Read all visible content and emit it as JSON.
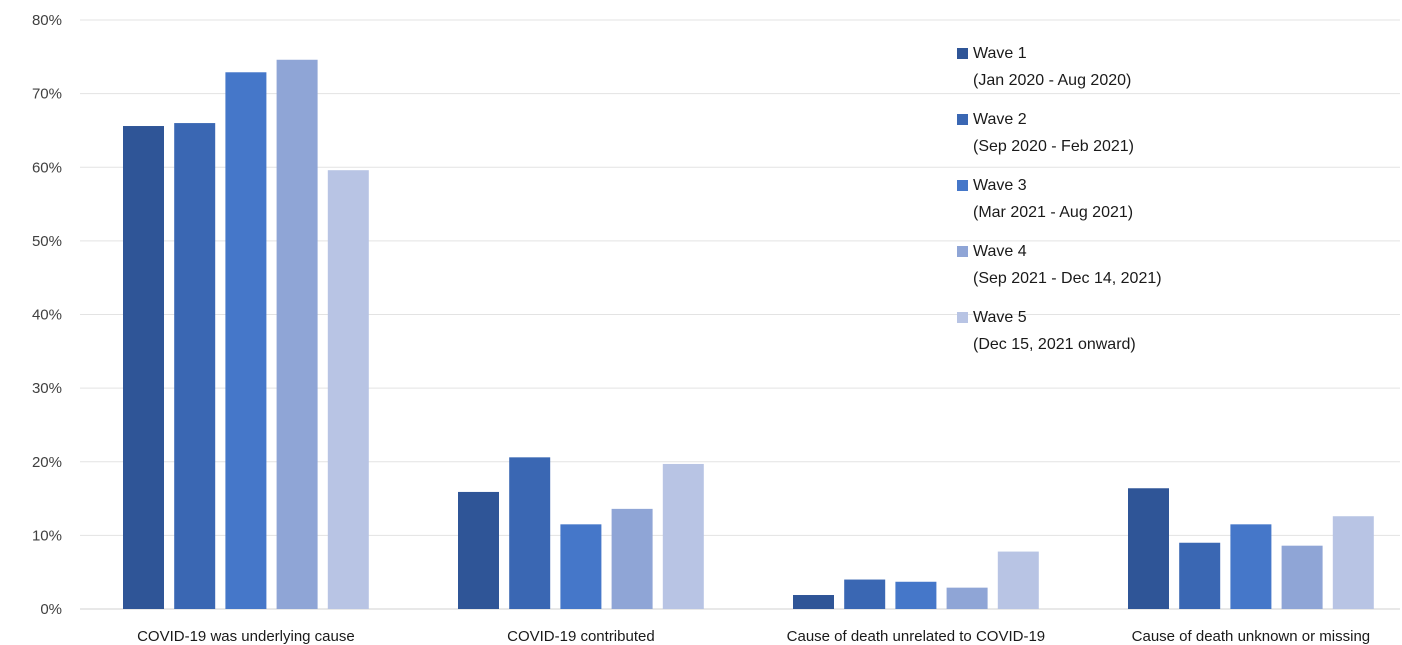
{
  "chart_data": {
    "type": "bar",
    "title": "",
    "xlabel": "",
    "ylabel": "",
    "categories": [
      "COVID-19 was underlying cause",
      "COVID-19 contributed",
      "Cause of death unrelated to COVID-19",
      "Cause of death unknown or missing"
    ],
    "series": [
      {
        "name": "Wave 1",
        "period": "(Jan 2020 - Aug 2020)",
        "color": "#2f5597",
        "values": [
          65.6,
          15.9,
          1.9,
          16.4
        ]
      },
      {
        "name": "Wave 2",
        "period": "(Sep 2020 - Feb 2021)",
        "color": "#3a67b3",
        "values": [
          66.0,
          20.6,
          4.0,
          9.0
        ]
      },
      {
        "name": "Wave 3",
        "period": "(Mar 2021 - Aug 2021)",
        "color": "#4577c9",
        "values": [
          72.9,
          11.5,
          3.7,
          11.5
        ]
      },
      {
        "name": "Wave 4",
        "period": "(Sep 2021 - Dec 14, 2021)",
        "color": "#8fa5d6",
        "values": [
          74.6,
          13.6,
          2.9,
          8.6
        ]
      },
      {
        "name": "Wave 5",
        "period": "(Dec 15, 2021 onward)",
        "color": "#b8c4e4",
        "values": [
          59.6,
          19.7,
          7.8,
          12.6
        ]
      }
    ],
    "ylim": [
      0,
      80
    ],
    "yticks": [
      0,
      10,
      20,
      30,
      40,
      50,
      60,
      70,
      80
    ],
    "ytick_labels": [
      "0%",
      "10%",
      "20%",
      "30%",
      "40%",
      "50%",
      "60%",
      "70%",
      "80%"
    ],
    "grid": true,
    "legend_position": "top-right"
  }
}
